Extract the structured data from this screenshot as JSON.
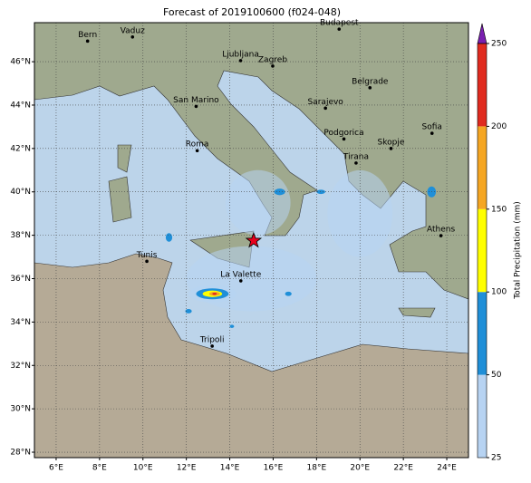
{
  "map": {
    "title": "Forecast of 2019100600 (f024-048)",
    "lon_range": [
      5,
      25
    ],
    "lat_range": [
      27.75,
      47.8
    ],
    "lon_ticks": [
      {
        "value": 6,
        "label": "6°E"
      },
      {
        "value": 8,
        "label": "8°E"
      },
      {
        "value": 10,
        "label": "10°E"
      },
      {
        "value": 12,
        "label": "12°E"
      },
      {
        "value": 14,
        "label": "14°E"
      },
      {
        "value": 16,
        "label": "16°E"
      },
      {
        "value": 18,
        "label": "18°E"
      },
      {
        "value": 20,
        "label": "20°E"
      },
      {
        "value": 22,
        "label": "22°E"
      },
      {
        "value": 24,
        "label": "24°E"
      }
    ],
    "lat_ticks": [
      {
        "value": 28,
        "label": "28°N"
      },
      {
        "value": 30,
        "label": "30°N"
      },
      {
        "value": 32,
        "label": "32°N"
      },
      {
        "value": 34,
        "label": "34°N"
      },
      {
        "value": 36,
        "label": "36°N"
      },
      {
        "value": 38,
        "label": "38°N"
      },
      {
        "value": 40,
        "label": "40°N"
      },
      {
        "value": 42,
        "label": "42°N"
      },
      {
        "value": 44,
        "label": "44°N"
      },
      {
        "value": 46,
        "label": "46°N"
      }
    ],
    "cities": [
      {
        "name": "Bern",
        "lon": 7.45,
        "lat": 46.95
      },
      {
        "name": "Vaduz",
        "lon": 9.52,
        "lat": 47.14
      },
      {
        "name": "Budapest",
        "lon": 19.04,
        "lat": 47.5
      },
      {
        "name": "Ljubljana",
        "lon": 14.5,
        "lat": 46.05
      },
      {
        "name": "Zagreb",
        "lon": 15.98,
        "lat": 45.8
      },
      {
        "name": "Belgrade",
        "lon": 20.46,
        "lat": 44.8
      },
      {
        "name": "San Marino",
        "lon": 12.45,
        "lat": 43.94
      },
      {
        "name": "Sarajevo",
        "lon": 18.41,
        "lat": 43.86
      },
      {
        "name": "Sofia",
        "lon": 23.32,
        "lat": 42.7
      },
      {
        "name": "Podgorica",
        "lon": 19.26,
        "lat": 42.44
      },
      {
        "name": "Roma",
        "lon": 12.5,
        "lat": 41.9
      },
      {
        "name": "Skopje",
        "lon": 21.43,
        "lat": 42.0
      },
      {
        "name": "Tirana",
        "lon": 19.82,
        "lat": 41.33
      },
      {
        "name": "Athens",
        "lon": 23.73,
        "lat": 37.98
      },
      {
        "name": "Tunis",
        "lon": 10.18,
        "lat": 36.8
      },
      {
        "name": "La Valette",
        "lon": 14.51,
        "lat": 35.9
      },
      {
        "name": "Tripoli",
        "lon": 13.19,
        "lat": 32.89
      }
    ],
    "marker": {
      "lon": 15.1,
      "lat": 37.75
    },
    "precip": [
      {
        "lon": 15.3,
        "lat": 39.5,
        "w": 3,
        "h": 3,
        "level": 25
      },
      {
        "lon": 20,
        "lat": 39,
        "w": 3,
        "h": 4,
        "level": 25
      },
      {
        "lon": 15,
        "lat": 36,
        "w": 6,
        "h": 3,
        "level": 25
      },
      {
        "lon": 13.2,
        "lat": 35.3,
        "w": 2.2,
        "h": 0.8,
        "level": 25
      },
      {
        "lon": 13.2,
        "lat": 35.3,
        "w": 1.5,
        "h": 0.5,
        "level": 50
      },
      {
        "lon": 13.2,
        "lat": 35.3,
        "w": 0.9,
        "h": 0.3,
        "level": 100
      },
      {
        "lon": 13.3,
        "lat": 35.3,
        "w": 0.5,
        "h": 0.18,
        "level": 150
      },
      {
        "lon": 13.3,
        "lat": 35.3,
        "w": 0.2,
        "h": 0.1,
        "level": 200
      },
      {
        "lon": 16.3,
        "lat": 40,
        "w": 0.5,
        "h": 0.3,
        "level": 50
      },
      {
        "lon": 18.2,
        "lat": 40,
        "w": 0.4,
        "h": 0.2,
        "level": 50
      },
      {
        "lon": 12.1,
        "lat": 34.5,
        "w": 0.3,
        "h": 0.2,
        "level": 50
      },
      {
        "lon": 16.7,
        "lat": 35.3,
        "w": 0.3,
        "h": 0.2,
        "level": 50
      },
      {
        "lon": 11.2,
        "lat": 37.9,
        "w": 0.3,
        "h": 0.4,
        "level": 50
      },
      {
        "lon": 23.3,
        "lat": 40,
        "w": 0.4,
        "h": 0.5,
        "level": 50
      },
      {
        "lon": 14.1,
        "lat": 33.8,
        "w": 0.2,
        "h": 0.15,
        "level": 50
      }
    ],
    "colorbar": {
      "label": "Total Precipitation (mm)",
      "ticks": [
        25,
        50,
        100,
        150,
        200,
        250
      ],
      "colors": [
        "#b7d3f2",
        "#1f8fd8",
        "#ffff00",
        "#f5a623",
        "#e02b1f"
      ],
      "extend_color": "#7a1fb0"
    }
  }
}
